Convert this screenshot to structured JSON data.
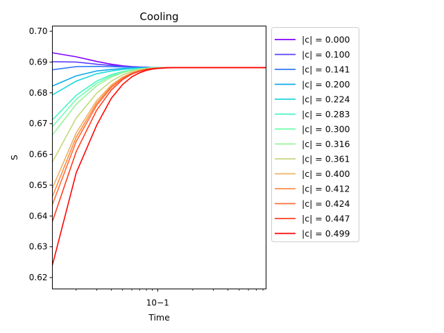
{
  "chart_data": {
    "type": "line",
    "title": "Cooling",
    "xlabel": "Time",
    "ylabel": "S",
    "xscale": "log",
    "xlim": [
      0.0125,
      0.85
    ],
    "ylim": [
      0.6163,
      0.7017
    ],
    "x_ticks": [
      {
        "value": 0.1,
        "label": "10−1"
      }
    ],
    "y_ticks": [
      {
        "value": 0.62,
        "label": "0.62"
      },
      {
        "value": 0.63,
        "label": "0.63"
      },
      {
        "value": 0.64,
        "label": "0.64"
      },
      {
        "value": 0.65,
        "label": "0.65"
      },
      {
        "value": 0.66,
        "label": "0.66"
      },
      {
        "value": 0.67,
        "label": "0.67"
      },
      {
        "value": 0.68,
        "label": "0.68"
      },
      {
        "value": 0.69,
        "label": "0.69"
      },
      {
        "value": 0.7,
        "label": "0.70"
      }
    ],
    "legend_position": "outside-right-top",
    "grid": false,
    "x": [
      0.0125,
      0.02,
      0.03,
      0.04,
      0.05,
      0.06,
      0.07,
      0.08,
      0.09,
      0.1,
      0.12,
      0.15,
      0.2,
      0.3,
      0.5,
      0.85
    ],
    "series": [
      {
        "name": "|c| = 0.000",
        "color": "#8000ff",
        "values": [
          0.693,
          0.6917,
          0.6902,
          0.6893,
          0.6888,
          0.6885,
          0.6884,
          0.6883,
          0.6882,
          0.6882,
          0.6882,
          0.6882,
          0.6882,
          0.6882,
          0.6882,
          0.6882
        ]
      },
      {
        "name": "|c| = 0.100",
        "color": "#5a40fd",
        "values": [
          0.6901,
          0.69,
          0.6893,
          0.6889,
          0.6886,
          0.6884,
          0.6883,
          0.6883,
          0.6882,
          0.6882,
          0.6882,
          0.6882,
          0.6882,
          0.6882,
          0.6882,
          0.6882
        ]
      },
      {
        "name": "|c| = 0.141",
        "color": "#3079f7",
        "values": [
          0.6875,
          0.6885,
          0.6886,
          0.6885,
          0.6884,
          0.6883,
          0.6883,
          0.6882,
          0.6882,
          0.6882,
          0.6882,
          0.6882,
          0.6882,
          0.6882,
          0.6882,
          0.6882
        ]
      },
      {
        "name": "|c| = 0.200",
        "color": "#0ca9ec",
        "values": [
          0.6822,
          0.6855,
          0.6871,
          0.6876,
          0.6879,
          0.688,
          0.6881,
          0.6882,
          0.6882,
          0.6882,
          0.6882,
          0.6882,
          0.6882,
          0.6882,
          0.6882,
          0.6882
        ]
      },
      {
        "name": "|c| = 0.224",
        "color": "#1cd7dc",
        "values": [
          0.6793,
          0.6838,
          0.6862,
          0.6871,
          0.6876,
          0.6879,
          0.688,
          0.6881,
          0.6882,
          0.6882,
          0.6882,
          0.6882,
          0.6882,
          0.6882,
          0.6882,
          0.6882
        ]
      },
      {
        "name": "|c| = 0.283",
        "color": "#46f4c6",
        "values": [
          0.6712,
          0.6792,
          0.6838,
          0.6859,
          0.6869,
          0.6875,
          0.6878,
          0.688,
          0.6881,
          0.6881,
          0.6882,
          0.6882,
          0.6882,
          0.6882,
          0.6882,
          0.6882
        ]
      },
      {
        "name": "|c| = 0.300",
        "color": "#70ffaf",
        "values": [
          0.669,
          0.6779,
          0.6831,
          0.6855,
          0.6867,
          0.6874,
          0.6878,
          0.688,
          0.6881,
          0.6881,
          0.6882,
          0.6882,
          0.6882,
          0.6882,
          0.6882,
          0.6882
        ]
      },
      {
        "name": "|c| = 0.316",
        "color": "#9af498",
        "values": [
          0.6663,
          0.6763,
          0.6823,
          0.6851,
          0.6865,
          0.6873,
          0.6877,
          0.6879,
          0.6881,
          0.6881,
          0.6882,
          0.6882,
          0.6882,
          0.6882,
          0.6882,
          0.6882
        ]
      },
      {
        "name": "|c| = 0.361",
        "color": "#c4d77d",
        "values": [
          0.6575,
          0.6718,
          0.6799,
          0.6838,
          0.6858,
          0.6869,
          0.6875,
          0.6878,
          0.688,
          0.6881,
          0.6882,
          0.6882,
          0.6882,
          0.6882,
          0.6882,
          0.6882
        ]
      },
      {
        "name": "|c| = 0.400",
        "color": "#eeb263",
        "values": [
          0.649,
          0.667,
          0.6775,
          0.6825,
          0.6851,
          0.6865,
          0.6873,
          0.6877,
          0.6879,
          0.688,
          0.6882,
          0.6882,
          0.6882,
          0.6882,
          0.6882,
          0.6882
        ]
      },
      {
        "name": "|c| = 0.412",
        "color": "#ff8b48",
        "values": [
          0.6463,
          0.6656,
          0.6767,
          0.6821,
          0.6849,
          0.6864,
          0.6872,
          0.6877,
          0.6879,
          0.688,
          0.6882,
          0.6882,
          0.6882,
          0.6882,
          0.6882,
          0.6882
        ]
      },
      {
        "name": "|c| = 0.424",
        "color": "#ff6c38",
        "values": [
          0.6437,
          0.6642,
          0.676,
          0.6817,
          0.6847,
          0.6863,
          0.6871,
          0.6876,
          0.6879,
          0.688,
          0.6882,
          0.6882,
          0.6882,
          0.6882,
          0.6882,
          0.6882
        ]
      },
      {
        "name": "|c| = 0.447",
        "color": "#ff3d1f",
        "values": [
          0.6382,
          0.6609,
          0.6744,
          0.6809,
          0.6843,
          0.6861,
          0.687,
          0.6876,
          0.6879,
          0.688,
          0.6882,
          0.6882,
          0.6882,
          0.6882,
          0.6882,
          0.6882
        ]
      },
      {
        "name": "|c| = 0.499",
        "color": "#ff0000",
        "values": [
          0.624,
          0.654,
          0.6695,
          0.6782,
          0.6827,
          0.6852,
          0.6865,
          0.6873,
          0.6877,
          0.6879,
          0.6881,
          0.6882,
          0.6882,
          0.6882,
          0.6882,
          0.6882
        ]
      }
    ]
  }
}
